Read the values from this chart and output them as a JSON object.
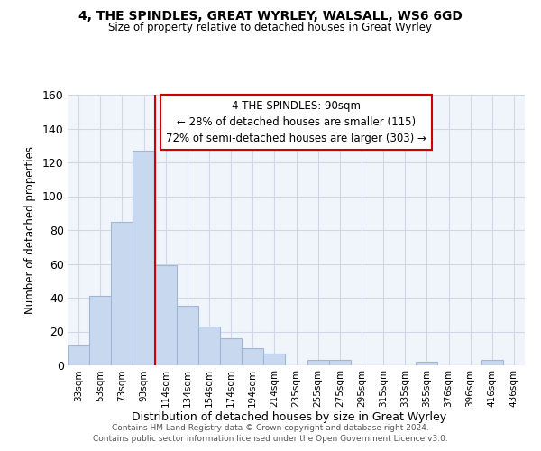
{
  "title": "4, THE SPINDLES, GREAT WYRLEY, WALSALL, WS6 6GD",
  "subtitle": "Size of property relative to detached houses in Great Wyrley",
  "xlabel": "Distribution of detached houses by size in Great Wyrley",
  "ylabel": "Number of detached properties",
  "bar_color": "#c8d8ee",
  "bar_edge_color": "#a0b8d8",
  "categories": [
    "33sqm",
    "53sqm",
    "73sqm",
    "93sqm",
    "114sqm",
    "134sqm",
    "154sqm",
    "174sqm",
    "194sqm",
    "214sqm",
    "235sqm",
    "255sqm",
    "275sqm",
    "295sqm",
    "315sqm",
    "335sqm",
    "355sqm",
    "376sqm",
    "396sqm",
    "416sqm",
    "436sqm"
  ],
  "values": [
    12,
    41,
    85,
    127,
    59,
    35,
    23,
    16,
    10,
    7,
    0,
    3,
    3,
    0,
    0,
    0,
    2,
    0,
    0,
    3,
    0
  ],
  "vline_index": 3.5,
  "vline_color": "#cc0000",
  "annotation_line1": "4 THE SPINDLES: 90sqm",
  "annotation_line2": "← 28% of detached houses are smaller (115)",
  "annotation_line3": "72% of semi-detached houses are larger (303) →",
  "annotation_box_edgecolor": "#cc0000",
  "plot_bg_color": "#f0f4fb",
  "grid_color": "#d0d8e8",
  "ylim": [
    0,
    160
  ],
  "yticks": [
    0,
    20,
    40,
    60,
    80,
    100,
    120,
    140,
    160
  ],
  "footer_line1": "Contains HM Land Registry data © Crown copyright and database right 2024.",
  "footer_line2": "Contains public sector information licensed under the Open Government Licence v3.0."
}
